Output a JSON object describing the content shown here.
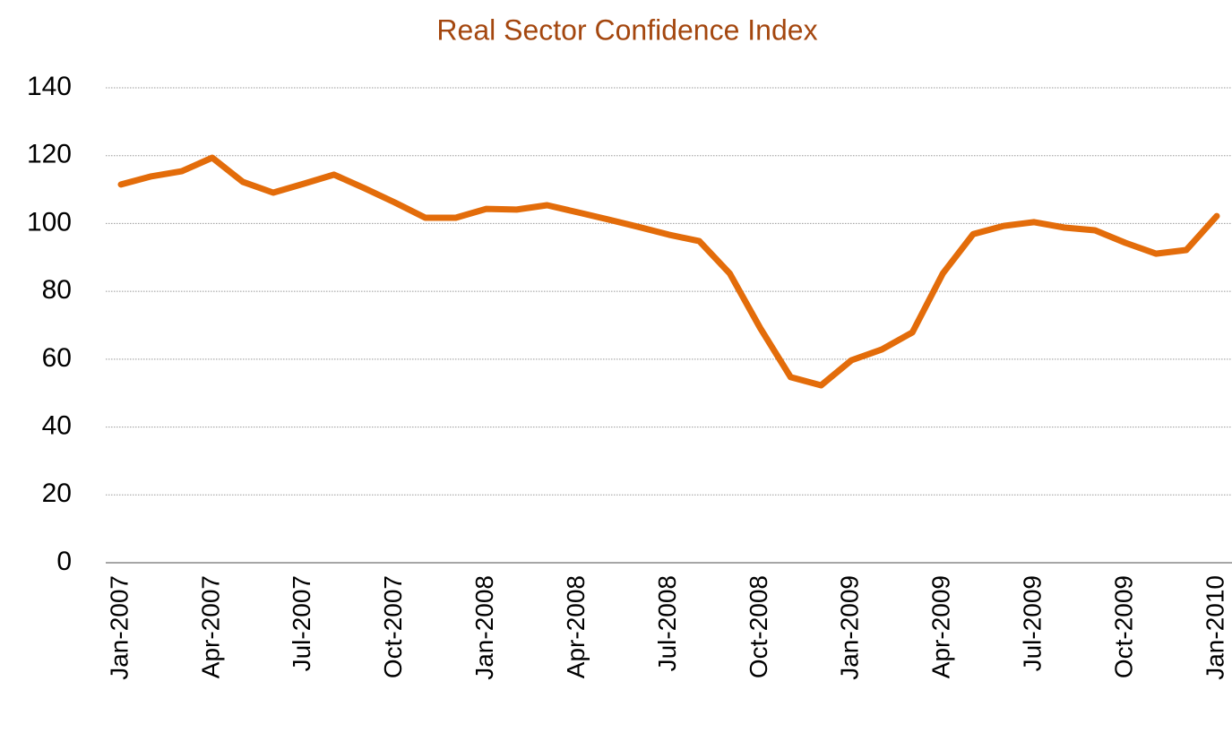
{
  "chart_data": {
    "type": "line",
    "title": "Real Sector Confidence Index",
    "categories": [
      "Jan-2007",
      null,
      null,
      "Apr-2007",
      null,
      null,
      "Jul-2007",
      null,
      null,
      "Oct-2007",
      null,
      null,
      "Jan-2008",
      null,
      null,
      "Apr-2008",
      null,
      null,
      "Jul-2008",
      null,
      null,
      "Oct-2008",
      null,
      null,
      "Jan-2009",
      null,
      null,
      "Apr-2009",
      null,
      null,
      "Jul-2009",
      null,
      null,
      "Oct-2009",
      null,
      null,
      "Jan-2010"
    ],
    "series": [
      {
        "name": "Real Sector Confidence Index",
        "color": "#e36c0a",
        "values": [
          111.5,
          113.9,
          115.4,
          119.4,
          112.3,
          109.1,
          111.7,
          114.4,
          110.4,
          106.2,
          101.7,
          101.7,
          104.3,
          104.1,
          105.4,
          103.3,
          101.2,
          99.0,
          96.7,
          94.8,
          85.3,
          69.2,
          54.7,
          52.3,
          59.7,
          62.9,
          67.9,
          85.3,
          96.9,
          99.3,
          100.4,
          98.8,
          98.0,
          94.3,
          91.1,
          92.2,
          102.2
        ]
      }
    ],
    "ylim": [
      0,
      140
    ],
    "yticks": [
      0,
      20,
      40,
      60,
      80,
      100,
      120,
      140
    ],
    "grid": true
  }
}
